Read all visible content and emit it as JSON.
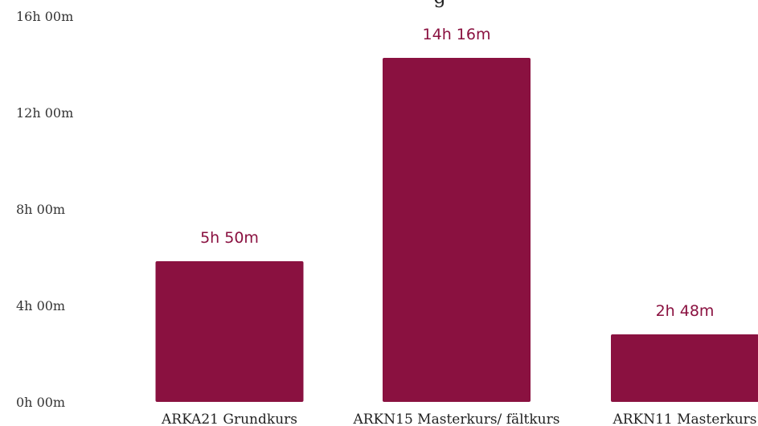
{
  "chart_data": {
    "type": "bar",
    "title": "g",
    "categories": [
      "ARKA21 Grundkurs",
      "ARKN15 Masterkurs/ fältkurs",
      "ARKN11 Masterkurs"
    ],
    "values": [
      350,
      856,
      168
    ],
    "value_unit": "minutes",
    "data_labels": [
      "5h 50m",
      "14h 16m",
      "2h 48m"
    ],
    "yticks": [
      0,
      240,
      480,
      720,
      960
    ],
    "ytick_labels": [
      "0h 00m",
      "4h 00m",
      "8h 00m",
      "12h 00m",
      "16h 00m"
    ],
    "ylim": [
      0,
      960
    ],
    "grid": false,
    "bar_color": "#8a1140",
    "label_color": "#8a1140"
  }
}
